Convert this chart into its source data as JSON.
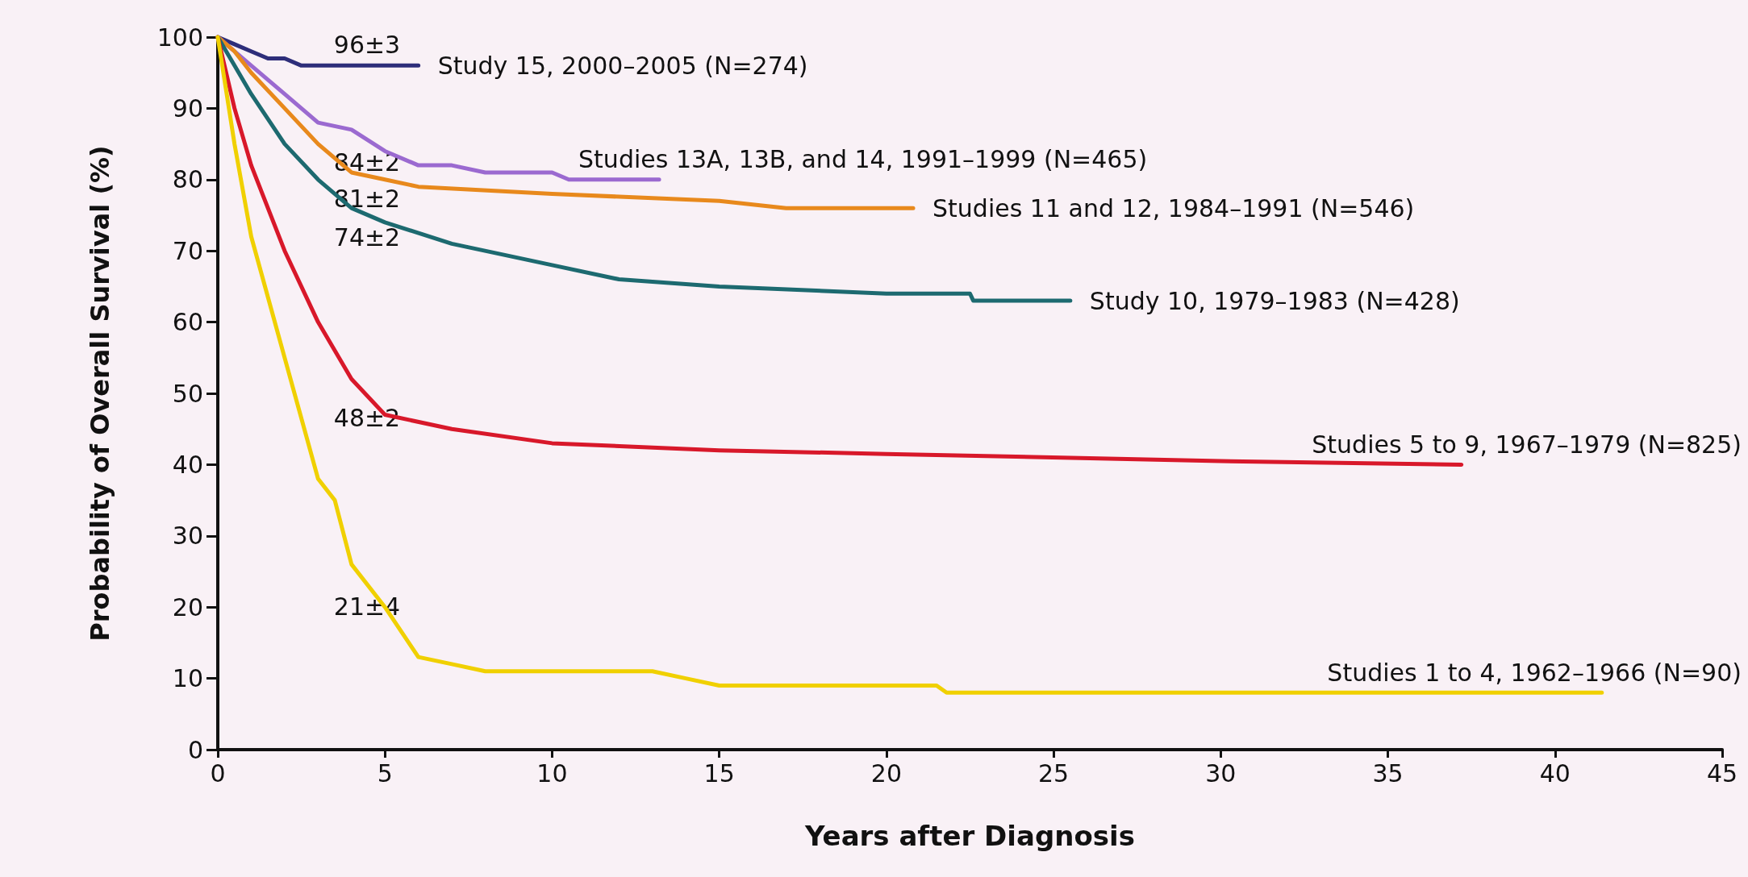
{
  "chart_data": {
    "type": "line",
    "xlabel": "Years after Diagnosis",
    "ylabel": "Probability of Overall Survival (%)",
    "xlim": [
      0,
      45
    ],
    "xticks": [
      0,
      5,
      10,
      15,
      20,
      25,
      30,
      35,
      40,
      45
    ],
    "ylim": [
      0,
      100
    ],
    "yticks": [
      0,
      10,
      20,
      30,
      40,
      50,
      60,
      70,
      80,
      90,
      100
    ],
    "grid": false,
    "legend": false,
    "marker": "none",
    "line_style": "solid",
    "series": [
      {
        "name": "Study 15, 2000–2005 (N=274)",
        "color": "#2e2e7a",
        "x": [
          0,
          0.5,
          1,
          1.5,
          2,
          2.5,
          3,
          6
        ],
        "values": [
          100,
          99,
          98,
          97,
          97,
          96,
          96,
          96
        ]
      },
      {
        "name": "Studies 13A, 13B, and 14, 1991–1999 (N=465)",
        "color": "#9b6ad0",
        "x": [
          0,
          0.5,
          1,
          2,
          3,
          4,
          5,
          6,
          7,
          8,
          10,
          10.5,
          13.2
        ],
        "values": [
          100,
          98,
          96,
          92,
          88,
          87,
          84,
          82,
          82,
          81,
          81,
          80,
          80
        ]
      },
      {
        "name": "Studies 11 and 12, 1984–1991 (N=546)",
        "color": "#e8891c",
        "x": [
          0,
          0.5,
          1,
          2,
          3,
          4,
          5,
          6,
          10,
          15,
          17,
          20.8
        ],
        "values": [
          100,
          98,
          95,
          90,
          85,
          81,
          80,
          79,
          78,
          77,
          76,
          76
        ]
      },
      {
        "name": "Study 10, 1979–1983 (N=428)",
        "color": "#1d6a70",
        "x": [
          0,
          0.5,
          1,
          2,
          3,
          4,
          5,
          7,
          10,
          12,
          15,
          20,
          22.5,
          22.6,
          25.5
        ],
        "values": [
          100,
          96,
          92,
          85,
          80,
          76,
          74,
          71,
          68,
          66,
          65,
          64,
          64,
          63,
          63
        ]
      },
      {
        "name": "Studies 5 to 9, 1967–1979 (N=825)",
        "color": "#d8182a",
        "x": [
          0,
          0.5,
          1,
          2,
          3,
          4,
          5,
          7,
          10,
          15,
          20,
          30,
          37.2
        ],
        "values": [
          100,
          90,
          82,
          70,
          60,
          52,
          47,
          45,
          43,
          42,
          41.5,
          40.5,
          40
        ]
      },
      {
        "name": "Studies 1 to 4, 1962–1966 (N=90)",
        "color": "#f0d000",
        "x": [
          0,
          0.5,
          1,
          2,
          3,
          3.5,
          4,
          5,
          6,
          7,
          8,
          13,
          14,
          15,
          21.5,
          21.8,
          41.4
        ],
        "values": [
          100,
          85,
          72,
          55,
          38,
          35,
          26,
          20,
          13,
          12,
          11,
          11,
          10,
          9,
          9,
          8,
          8
        ]
      }
    ],
    "annotations": [
      "96±3",
      "84±2",
      "81±2",
      "74±2",
      "48±2",
      "21±4"
    ]
  }
}
